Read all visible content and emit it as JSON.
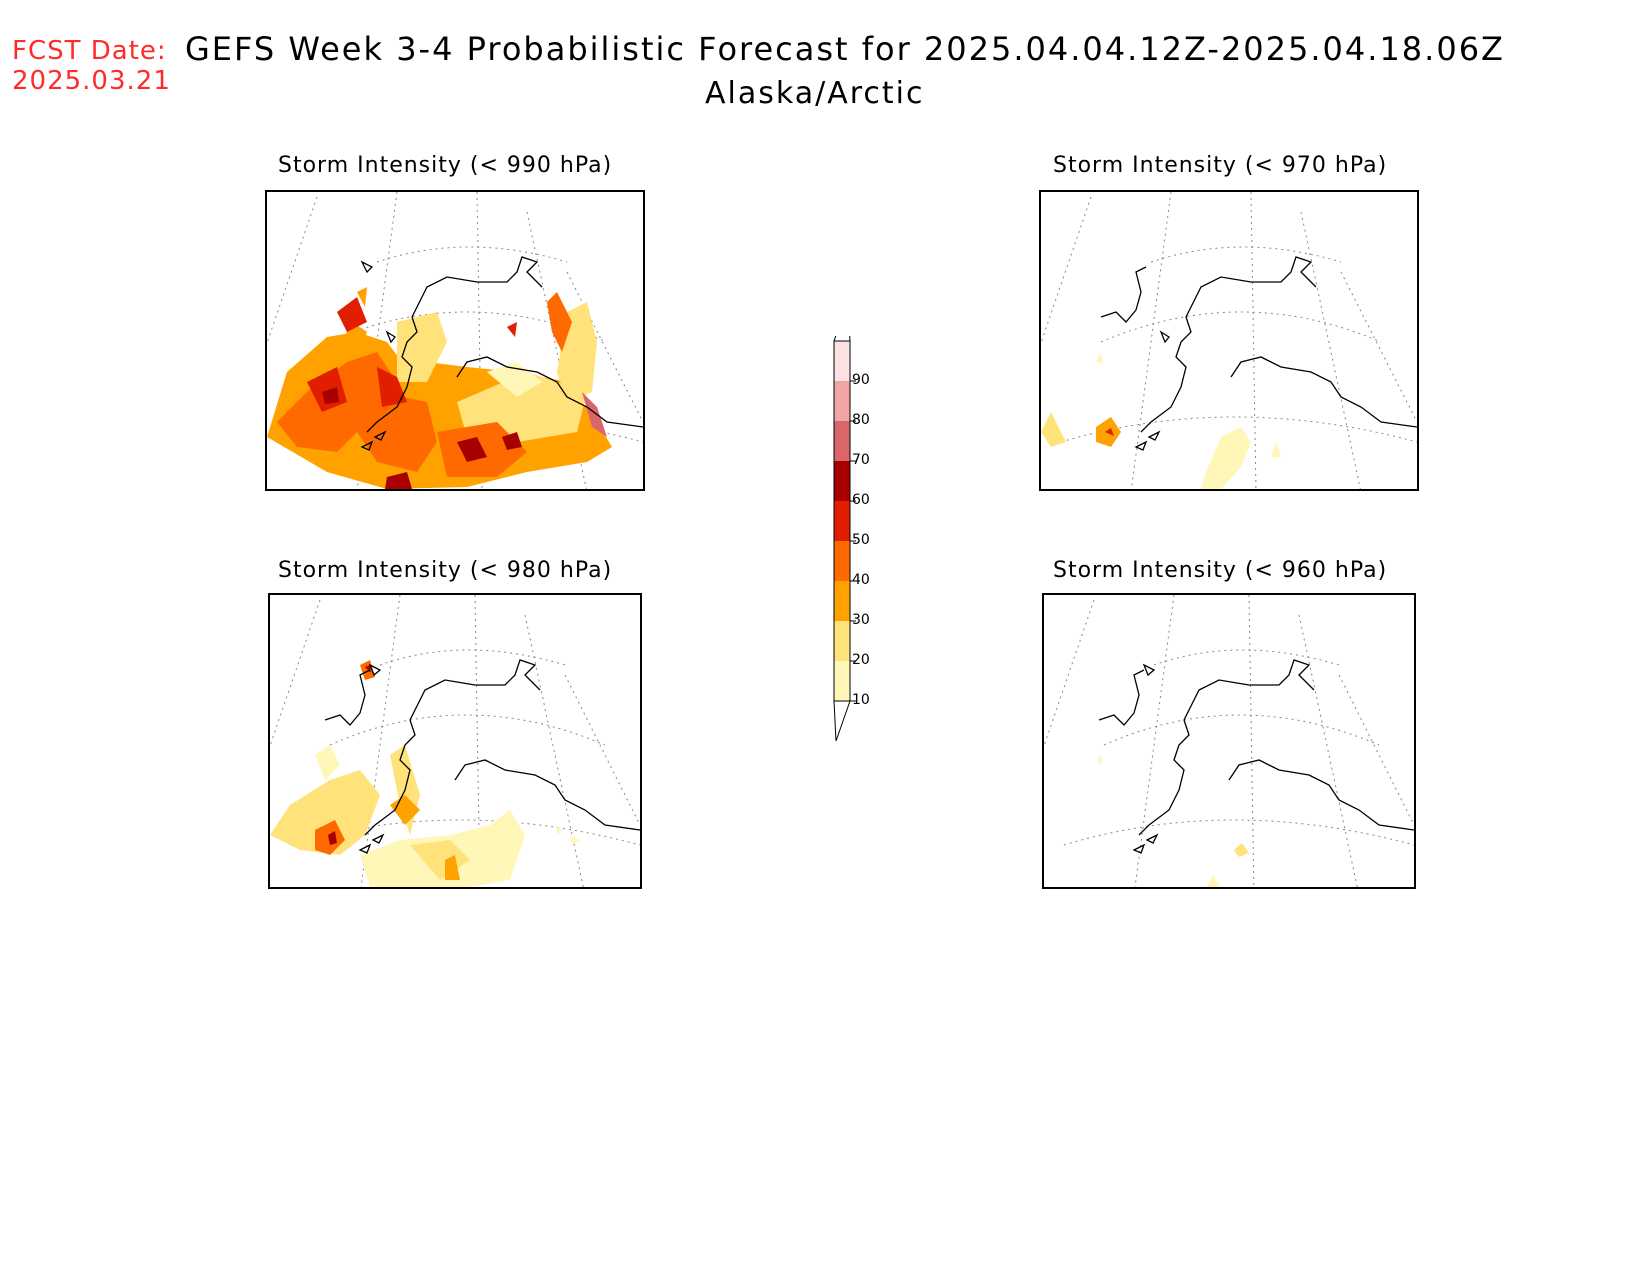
{
  "header": {
    "fcst_label": "FCST Date:",
    "fcst_date": "2025.03.21",
    "title": "GEFS Week 3-4 Probabilistic Forecast for 2025.04.04.12Z-2025.04.18.06Z",
    "subtitle": "Alaska/Arctic"
  },
  "panels": [
    {
      "id": "p990",
      "title": "Storm Intensity (< 990 hPa)"
    },
    {
      "id": "p970",
      "title": "Storm Intensity (< 970 hPa)"
    },
    {
      "id": "p980",
      "title": "Storm Intensity (< 980 hPa)"
    },
    {
      "id": "p960",
      "title": "Storm Intensity (< 960 hPa)"
    }
  ],
  "colorbar": {
    "levels": [
      "10",
      "20",
      "30",
      "40",
      "50",
      "60",
      "70",
      "80",
      "90"
    ],
    "colors": {
      "10": "#fff7b8",
      "20": "#ffe27a",
      "30": "#ffa200",
      "40": "#ff6a00",
      "50": "#e11e00",
      "60": "#a80000",
      "70": "#d9666b",
      "80": "#f2a5a5",
      "90": "#fde2e3"
    }
  }
}
